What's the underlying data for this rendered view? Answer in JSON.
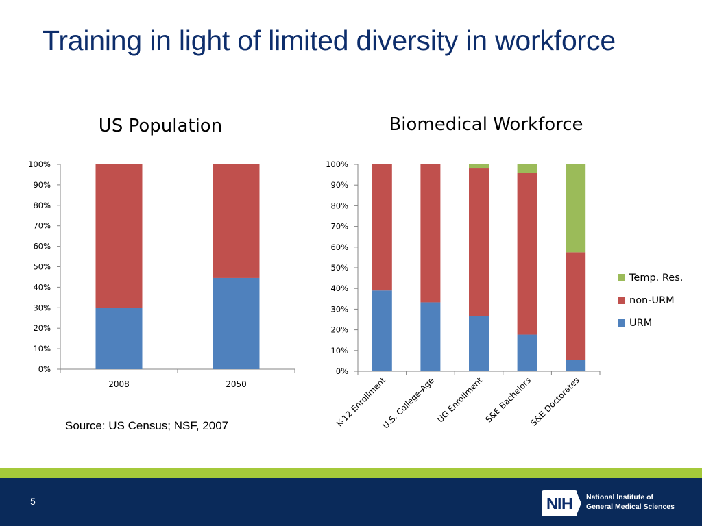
{
  "slide": {
    "title": "Training in light of limited diversity in workforce",
    "source_note": "Source: US Census; NSF, 2007",
    "page_number": "5"
  },
  "footer": {
    "logo_text": "NIH",
    "institute_line_1": "National Institute of",
    "institute_line_2": "General Medical Sciences",
    "accent_color": "#a4c93a",
    "background_color": "#0a2a5a"
  },
  "chart_data": [
    {
      "type": "bar",
      "stacked": true,
      "title": "US Population",
      "categories": [
        "2008",
        "2050"
      ],
      "series": [
        {
          "name": "URM",
          "color": "#4f81bd",
          "values": [
            30,
            44.5
          ]
        },
        {
          "name": "non-URM",
          "color": "#c0504d",
          "values": [
            70,
            55.5
          ]
        }
      ],
      "ylim": [
        0,
        100
      ],
      "yticks": [
        "0%",
        "10%",
        "20%",
        "30%",
        "40%",
        "50%",
        "60%",
        "70%",
        "80%",
        "90%",
        "100%"
      ],
      "legend": "none"
    },
    {
      "type": "bar",
      "stacked": true,
      "title": "Biomedical Workforce",
      "categories": [
        "K-12 Enrollment",
        "U.S. College-Age",
        "UG Enrollment",
        "S&E Bachelors",
        "S&E Doctorates"
      ],
      "series": [
        {
          "name": "URM",
          "color": "#4f81bd",
          "values": [
            39,
            33.3,
            26.5,
            17.7,
            5.3
          ]
        },
        {
          "name": "non-URM",
          "color": "#c0504d",
          "values": [
            61,
            66.7,
            71.5,
            78.3,
            52.2
          ]
        },
        {
          "name": "Temp. Res.",
          "color": "#9bbb59",
          "values": [
            0,
            0,
            2,
            4,
            42.5
          ]
        }
      ],
      "ylim": [
        0,
        100
      ],
      "yticks": [
        "0%",
        "10%",
        "20%",
        "30%",
        "40%",
        "50%",
        "60%",
        "70%",
        "80%",
        "90%",
        "100%"
      ],
      "legend": "right",
      "legend_order": [
        "Temp. Res.",
        "non-URM",
        "URM"
      ]
    }
  ]
}
